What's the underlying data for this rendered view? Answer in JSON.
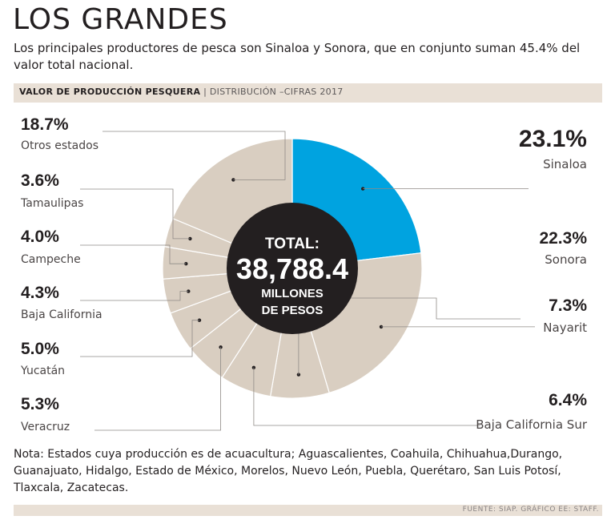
{
  "header": {
    "title": "LOS GRANDES",
    "subtitle": "Los principales productores de pesca son Sinaloa y Sonora, que en conjunto suman 45.4% del valor total nacional."
  },
  "band": {
    "label": "VALOR DE PRODUCCIÓN PESQUERA",
    "separator": "|",
    "sublabel": "DISTRIBUCIÓN –CIFRAS 2017"
  },
  "center": {
    "line1": "TOTAL:",
    "value": "38,788.4",
    "line3": "MILLONES",
    "line4": "DE PESOS"
  },
  "colors": {
    "highlight": "#00a3e0",
    "slice": "#d9cec1",
    "center": "#231f20",
    "band": "#e9e0d6"
  },
  "chart_data": {
    "type": "pie",
    "title": "VALOR DE PRODUCCIÓN PESQUERA",
    "unit": "%",
    "total_label": "38,788.4 millones de pesos",
    "slices": [
      {
        "name": "Sinaloa",
        "value": 23.1,
        "label": "23.1%"
      },
      {
        "name": "Sonora",
        "value": 22.3,
        "label": "22.3%"
      },
      {
        "name": "Nayarit",
        "value": 7.3,
        "label": "7.3%"
      },
      {
        "name": "Baja California Sur",
        "value": 6.4,
        "label": "6.4%"
      },
      {
        "name": "Veracruz",
        "value": 5.3,
        "label": "5.3%"
      },
      {
        "name": "Yucatán",
        "value": 5.0,
        "label": "5.0%"
      },
      {
        "name": "Baja California",
        "value": 4.3,
        "label": "4.3%"
      },
      {
        "name": "Campeche",
        "value": 4.0,
        "label": "4.0%"
      },
      {
        "name": "Tamaulipas",
        "value": 3.6,
        "label": "3.6%"
      },
      {
        "name": "Otros estados",
        "value": 18.7,
        "label": "18.7%"
      }
    ]
  },
  "note": "Nota: Estados cuya producción es de acuacultura; Aguascalientes, Coahuila, Chihuahua,Durango, Guanajuato, Hidalgo, Estado de México, Morelos, Nuevo León, Puebla, Querétaro, San Luis Potosí, Tlaxcala, Zacatecas.",
  "source": "FUENTE: SIAP. GRÁFICO EE: STAFF."
}
